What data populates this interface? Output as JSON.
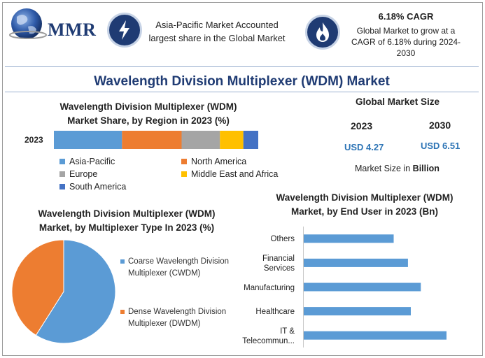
{
  "brand": {
    "name": "MMR",
    "globe_color": "#2e5aa8"
  },
  "highlights": [
    {
      "icon": "lightning-icon",
      "text": "Asia-Pacific Market Accounted largest share in the Global Market"
    },
    {
      "icon": "flame-icon",
      "title": "6.18% CAGR",
      "text": "Global Market to grow at a CAGR of 6.18% during 2024-2030"
    }
  ],
  "main_title": "Wavelength Division Multiplexer (WDM) Market",
  "market_size": {
    "title": "Global Market Size",
    "years": [
      "2023",
      "2030"
    ],
    "values": [
      "USD 4.27",
      "USD 6.51"
    ],
    "note_prefix": "Market Size in ",
    "note_unit": "Billion"
  },
  "colors": {
    "accent": "#1f3b73",
    "value_blue": "#2e75b6"
  },
  "chart_data": [
    {
      "type": "bar",
      "stacked": true,
      "orientation": "horizontal",
      "title": "Wavelength Division Multiplexer (WDM) Market Share, by Region in 2023 (%)",
      "categories": [
        "2023"
      ],
      "series": [
        {
          "name": "Asia-Pacific",
          "values": [
            32
          ],
          "color": "#5b9bd5"
        },
        {
          "name": "North America",
          "values": [
            28
          ],
          "color": "#ed7d31"
        },
        {
          "name": "Europe",
          "values": [
            18
          ],
          "color": "#a5a5a5"
        },
        {
          "name": "Middle East and Africa",
          "values": [
            11
          ],
          "color": "#ffc000"
        },
        {
          "name": "South America",
          "values": [
            7
          ],
          "color": "#4472c4"
        }
      ],
      "legend": "bottom"
    },
    {
      "type": "pie",
      "title": "Wavelength Division Multiplexer (WDM) Market, by Multiplexer Type In 2023 (%)",
      "labels": [
        "Coarse Wavelength Division Multiplexer (CWDM)",
        "Dense Wavelength Division Multiplexer (DWDM)"
      ],
      "values": [
        59,
        41
      ],
      "colors": [
        "#5b9bd5",
        "#ed7d31"
      ],
      "legend": "right"
    },
    {
      "type": "bar",
      "orientation": "horizontal",
      "title": "Wavelength Division Multiplexer (WDM) Market, by End User in 2023 (Bn)",
      "categories": [
        "Others",
        "Financial Services",
        "Manufacturing",
        "Healthcare",
        "IT & Telecommun..."
      ],
      "values": [
        0.63,
        0.73,
        0.82,
        0.75,
        1.0
      ],
      "color": "#5b9bd5",
      "grid": false
    }
  ]
}
